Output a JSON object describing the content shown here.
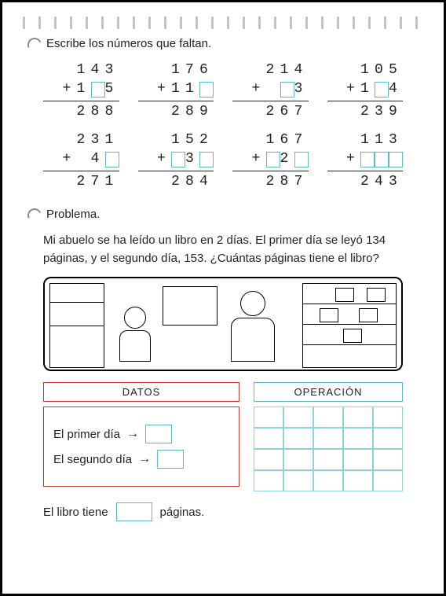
{
  "dots_color": "#888888",
  "ex1": {
    "title": "Escribe los números que faltan.",
    "box_border": "#5bbcc4",
    "problems": [
      {
        "top": [
          "1",
          "4",
          "3"
        ],
        "add": [
          "1",
          "□",
          "5"
        ],
        "sum": [
          "2",
          "8",
          "8"
        ]
      },
      {
        "top": [
          "1",
          "7",
          "6"
        ],
        "add": [
          "1",
          "1",
          "□"
        ],
        "sum": [
          "2",
          "8",
          "9"
        ]
      },
      {
        "top": [
          "2",
          "1",
          "4"
        ],
        "add": [
          " ",
          "□",
          "3"
        ],
        "sum": [
          "2",
          "6",
          "7"
        ]
      },
      {
        "top": [
          "1",
          "0",
          "5"
        ],
        "add": [
          "1",
          "□",
          "4"
        ],
        "sum": [
          "2",
          "3",
          "9"
        ]
      },
      {
        "top": [
          "2",
          "3",
          "1"
        ],
        "add": [
          " ",
          "4",
          "□"
        ],
        "sum": [
          "2",
          "7",
          "1"
        ]
      },
      {
        "top": [
          "1",
          "5",
          "2"
        ],
        "add": [
          "□",
          "3",
          "□"
        ],
        "sum": [
          "2",
          "8",
          "4"
        ]
      },
      {
        "top": [
          "1",
          "6",
          "7"
        ],
        "add": [
          "□",
          "2",
          "□"
        ],
        "sum": [
          "2",
          "8",
          "7"
        ]
      },
      {
        "top": [
          "1",
          "1",
          "3"
        ],
        "add": [
          "□",
          "□",
          "□"
        ],
        "sum": [
          "2",
          "4",
          "3"
        ]
      }
    ]
  },
  "ex2": {
    "title": "Problema.",
    "text": "Mi abuelo se ha leído un libro en 2 días. El primer día se leyó 134 páginas, y el segundo día, 153. ¿Cuántas páginas tiene el libro?",
    "datos_label": "DATOS",
    "op_label": "OPERACIÓN",
    "row1": "El primer día",
    "row2": "El segundo día",
    "answer_pre": "El libro tiene",
    "answer_post": "páginas.",
    "datos_border": "#c0392b",
    "op_border": "#5bbcc4",
    "op_grid": {
      "cols": 5,
      "rows": 4
    }
  }
}
